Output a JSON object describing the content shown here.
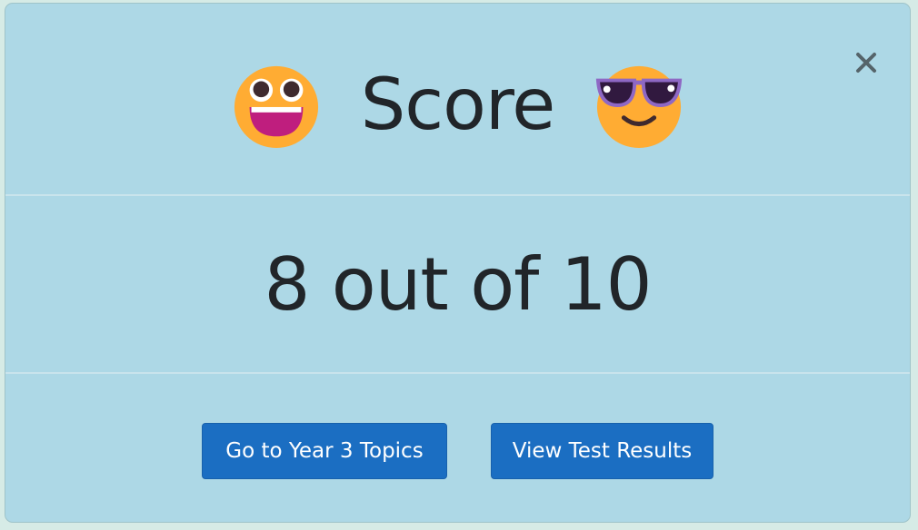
{
  "modal": {
    "title": "Score",
    "left_icon": "grinning-face-big-eyes-icon",
    "right_icon": "sunglasses-face-icon",
    "close_icon": "close-icon",
    "score_text": "8 out of 10",
    "buttons": {
      "topics": "Go to Year 3 Topics",
      "results": "View Test Results"
    },
    "colors": {
      "background": "#add8e6",
      "button": "#1b6ec2",
      "text": "#212529"
    }
  }
}
